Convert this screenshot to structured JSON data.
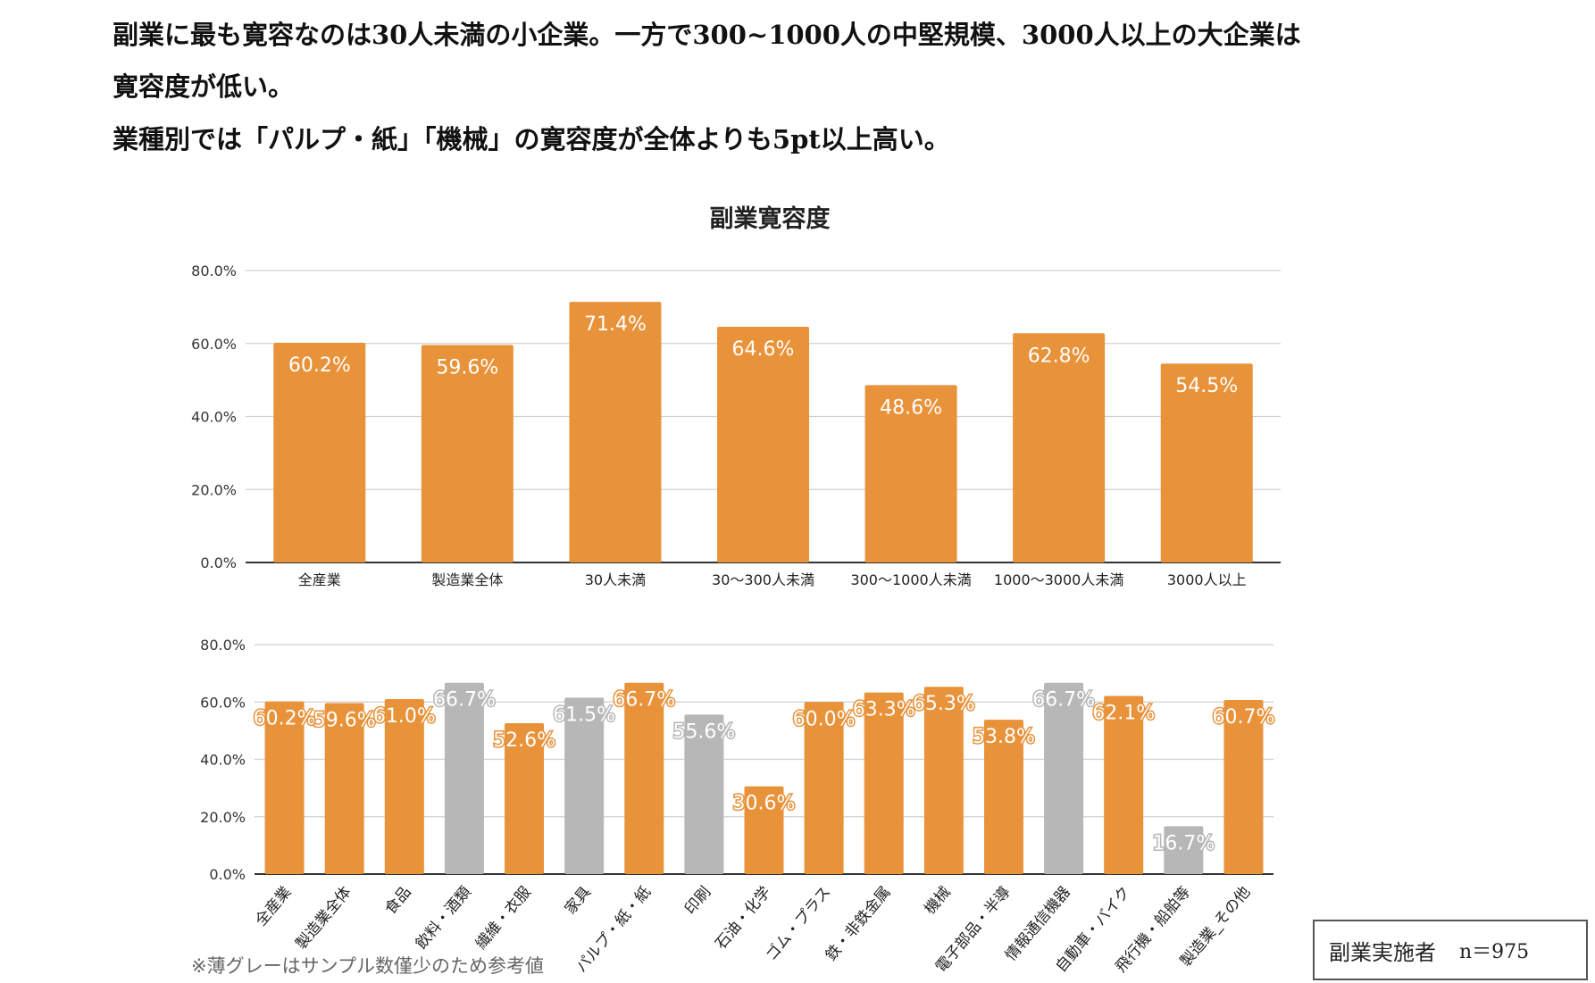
{
  "headline": {
    "line1": "副業に最も寛容なのは30人未満の小企業。一方で300~1000人の中堅規模、3000人以上の大企業は",
    "line2": "寛容度が低い。",
    "line3": "業種別では「パルプ・紙」「機械」の寛容度が全体よりも5pt以上高い。"
  },
  "colors": {
    "main": "#E8923A",
    "reference": "#B7B7B7"
  },
  "chart_data": [
    {
      "type": "bar",
      "title": "副業寛容度",
      "categories": [
        "全産業",
        "製造業全体",
        "30人未満",
        "30～300人未満",
        "300～1000人未満",
        "1000～3000人未満",
        "3000人以上"
      ],
      "values": [
        60.2,
        59.6,
        71.4,
        64.6,
        48.6,
        62.8,
        54.5
      ],
      "data_labels": [
        "60.2%",
        "59.6%",
        "71.4%",
        "64.6%",
        "48.6%",
        "62.8%",
        "54.5%"
      ],
      "ylim": [
        0,
        80
      ],
      "yticks": [
        "0.0%",
        "20.0%",
        "40.0%",
        "60.0%",
        "80.0%"
      ],
      "grid": true
    },
    {
      "type": "bar",
      "title": "",
      "categories": [
        "全産業",
        "製造業全体",
        "食品",
        "飲料・酒類",
        "繊維・衣服",
        "家具",
        "パルプ・紙・紙",
        "印刷",
        "石油・化学",
        "ゴム・プラス",
        "鉄・非鉄金属",
        "機械",
        "電子部品・半導",
        "情報通信機器",
        "自動車・バイク",
        "飛行機・船舶等",
        "製造業_その他"
      ],
      "values": [
        60.2,
        59.6,
        61.0,
        66.7,
        52.6,
        61.5,
        66.7,
        55.6,
        30.6,
        60.0,
        63.3,
        65.3,
        53.8,
        66.7,
        62.1,
        16.7,
        60.7
      ],
      "data_labels": [
        "60.2%",
        "59.6%",
        "61.0%",
        "66.7%",
        "52.6%",
        "61.5%",
        "66.7%",
        "55.6%",
        "30.6%",
        "60.0%",
        "63.3%",
        "65.3%",
        "53.8%",
        "66.7%",
        "62.1%",
        "16.7%",
        "60.7%"
      ],
      "reference_only": [
        false,
        false,
        false,
        true,
        false,
        true,
        false,
        true,
        false,
        false,
        false,
        false,
        false,
        true,
        false,
        true,
        false
      ],
      "ylim": [
        0,
        80
      ],
      "yticks": [
        "0.0%",
        "20.0%",
        "40.0%",
        "60.0%",
        "80.0%"
      ],
      "grid": true
    }
  ],
  "note": "※薄グレーはサンプル数僅少のため参考値",
  "sample_box": {
    "label": "副業実施者",
    "n": "n＝975"
  }
}
